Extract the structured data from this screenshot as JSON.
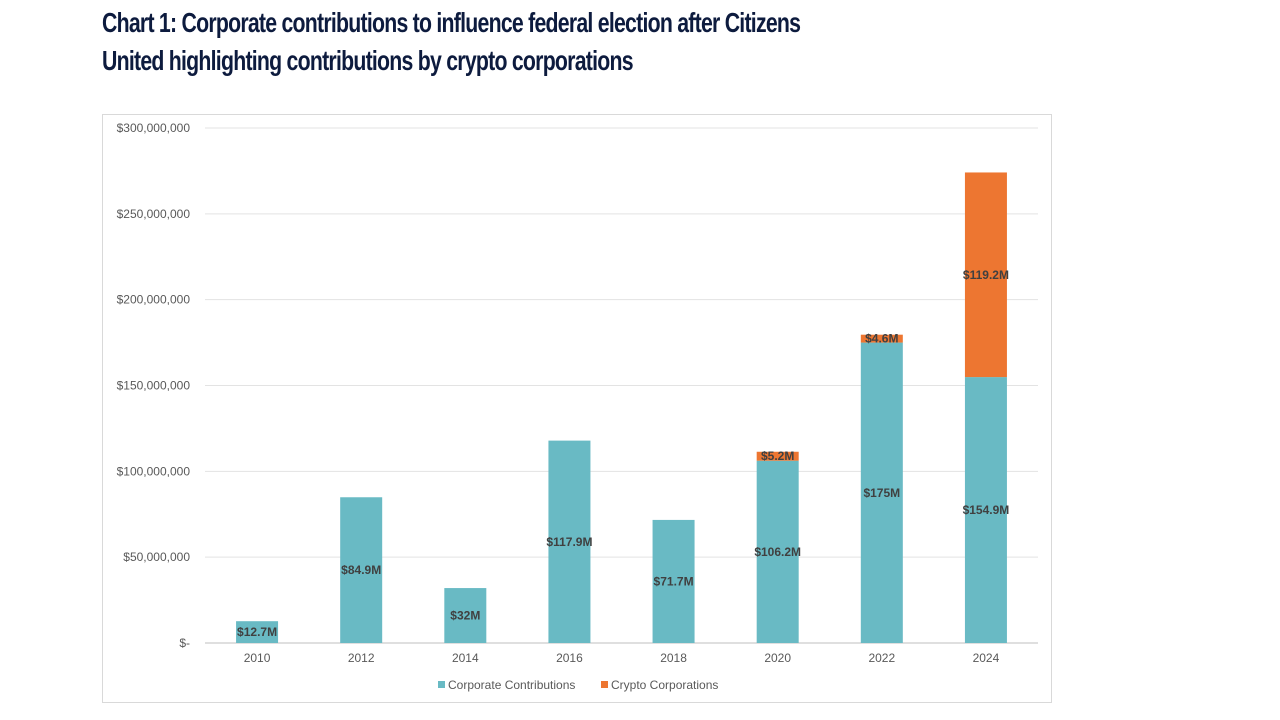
{
  "title_line1": "Chart 1: Corporate contributions to influence federal election after Citizens",
  "title_line2": "United highlighting contributions by crypto corporations",
  "chart_data": {
    "type": "bar",
    "stacked": true,
    "title": "Chart 1: Corporate contributions to influence federal election after Citizens United highlighting contributions by crypto corporations",
    "categories": [
      "2010",
      "2012",
      "2014",
      "2016",
      "2018",
      "2020",
      "2022",
      "2024"
    ],
    "series": [
      {
        "name": "Corporate Contributions",
        "color": "#69bac4",
        "values": [
          12.7,
          84.9,
          32,
          117.9,
          71.7,
          106.2,
          175,
          154.9
        ],
        "labels": [
          "$12.7M",
          "$84.9M",
          "$32M",
          "$117.9M",
          "$71.7M",
          "$106.2M",
          "$175M",
          "$154.9M"
        ]
      },
      {
        "name": "Crypto Corporations",
        "color": "#ed7631",
        "values": [
          null,
          null,
          null,
          null,
          null,
          5.2,
          4.6,
          119.2
        ],
        "labels": [
          null,
          null,
          null,
          null,
          null,
          "$5.2M",
          "$4.6M",
          "$119.2M"
        ]
      }
    ],
    "value_unit": "millions USD",
    "ylim": [
      0,
      300
    ],
    "yticks": [
      0,
      50,
      100,
      150,
      200,
      250,
      300
    ],
    "ytick_labels": [
      "$-",
      "$50,000,000",
      "$100,000,000",
      "$150,000,000",
      "$200,000,000",
      "$250,000,000",
      "$300,000,000"
    ],
    "grid": true,
    "legend": "bottom"
  }
}
